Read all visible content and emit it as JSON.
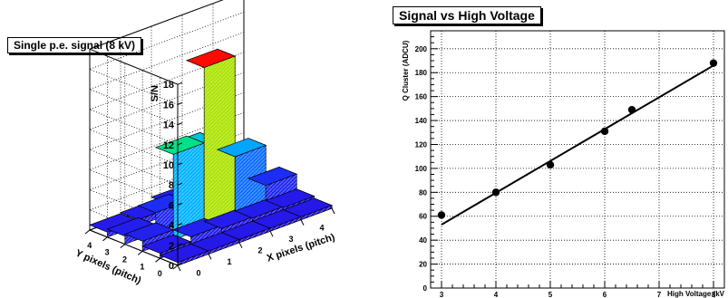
{
  "chart_data": [
    {
      "type": "bar3d",
      "title": "Single p.e. signal (8 kV)",
      "xlabel": "X pixels (pitch)",
      "ylabel": "Y pixels (pitch)",
      "zlabel": "S/N",
      "x_ticks": [
        "0",
        "1",
        "2",
        "3",
        "4"
      ],
      "y_ticks": [
        "0",
        "1",
        "2",
        "3",
        "4"
      ],
      "z_ticks": [
        "0",
        "2",
        "4",
        "6",
        "8",
        "10",
        "12",
        "14",
        "16",
        "18"
      ],
      "zlim": [
        0,
        18
      ],
      "grid": true,
      "cells": [
        {
          "x": 0,
          "y": 0,
          "z": 0.3
        },
        {
          "x": 1,
          "y": 0,
          "z": 0.3
        },
        {
          "x": 2,
          "y": 0,
          "z": 0.3
        },
        {
          "x": 3,
          "y": 0,
          "z": 0.3
        },
        {
          "x": 4,
          "y": 0,
          "z": 0.3
        },
        {
          "x": 0,
          "y": 1,
          "z": 0.5
        },
        {
          "x": 1,
          "y": 1,
          "z": 1.0
        },
        {
          "x": 2,
          "y": 1,
          "z": 0.7
        },
        {
          "x": 3,
          "y": 1,
          "z": 0.6
        },
        {
          "x": 4,
          "y": 1,
          "z": 0.5
        },
        {
          "x": 0,
          "y": 2,
          "z": 1.0
        },
        {
          "x": 1,
          "y": 2,
          "z": 8.5
        },
        {
          "x": 2,
          "y": 2,
          "z": 16.0
        },
        {
          "x": 3,
          "y": 2,
          "z": 6.0
        },
        {
          "x": 4,
          "y": 2,
          "z": 2.0
        },
        {
          "x": 0,
          "y": 3,
          "z": 0.8
        },
        {
          "x": 1,
          "y": 3,
          "z": 2.0
        },
        {
          "x": 2,
          "y": 3,
          "z": 7.0
        },
        {
          "x": 3,
          "y": 3,
          "z": 2.0
        },
        {
          "x": 4,
          "y": 3,
          "z": 0.8
        },
        {
          "x": 0,
          "y": 4,
          "z": 0.5
        },
        {
          "x": 1,
          "y": 4,
          "z": 0.6
        },
        {
          "x": 2,
          "y": 4,
          "z": 1.0
        },
        {
          "x": 3,
          "y": 4,
          "z": 0.6
        },
        {
          "x": 4,
          "y": 4,
          "z": 0.5
        }
      ]
    },
    {
      "type": "scatter",
      "title": "Signal vs High Voltage",
      "xlabel": "High Voltage (kV",
      "ylabel": "Q Cluster (ADCU)",
      "xlim": [
        2.8,
        8.2
      ],
      "ylim": [
        0,
        215
      ],
      "x_ticks": [
        3,
        4,
        5,
        6,
        7,
        8
      ],
      "y_ticks": [
        0,
        20,
        40,
        60,
        80,
        100,
        120,
        140,
        160,
        180,
        200
      ],
      "grid": true,
      "points": [
        {
          "x": 3.0,
          "y": 61
        },
        {
          "x": 4.0,
          "y": 80
        },
        {
          "x": 5.0,
          "y": 103
        },
        {
          "x": 6.0,
          "y": 131
        },
        {
          "x": 6.5,
          "y": 149
        },
        {
          "x": 8.0,
          "y": 188
        }
      ],
      "fit_line": {
        "x0": 3.0,
        "y0": 53,
        "x1": 8.0,
        "y1": 186
      }
    }
  ]
}
